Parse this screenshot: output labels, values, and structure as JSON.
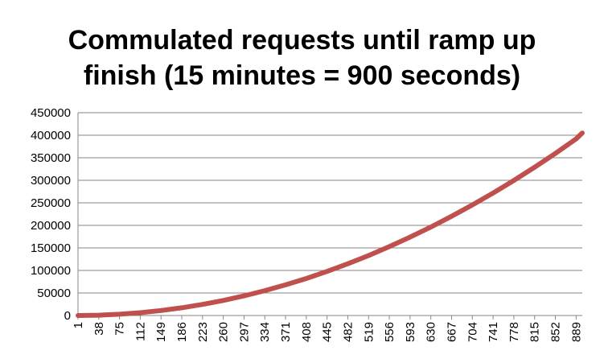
{
  "chart_data": {
    "type": "line",
    "title_lines": [
      "Commulated requests until ramp up",
      "finish (15 minutes = 900 seconds)"
    ],
    "xlabel": "",
    "ylabel": "",
    "ylim": [
      0,
      450000
    ],
    "y_ticks": [
      "0",
      "50000",
      "100000",
      "150000",
      "200000",
      "250000",
      "300000",
      "350000",
      "400000",
      "450000"
    ],
    "x_tick_labels": [
      "1",
      "38",
      "75",
      "112",
      "149",
      "186",
      "223",
      "260",
      "297",
      "334",
      "371",
      "408",
      "445",
      "482",
      "519",
      "556",
      "593",
      "630",
      "667",
      "704",
      "741",
      "778",
      "815",
      "852",
      "889"
    ],
    "xlim": [
      1,
      900
    ],
    "grid": "horizontal",
    "legend": "none",
    "series": [
      {
        "color": "#c0504d",
        "x": [
          1,
          38,
          75,
          112,
          149,
          186,
          223,
          260,
          297,
          334,
          371,
          408,
          445,
          482,
          519,
          556,
          593,
          630,
          667,
          704,
          741,
          778,
          815,
          852,
          889,
          900
        ],
        "values": [
          0,
          700,
          2800,
          6200,
          11000,
          17100,
          24600,
          33400,
          43600,
          55100,
          68000,
          82200,
          97800,
          114800,
          133100,
          152800,
          173900,
          196300,
          220100,
          245300,
          271800,
          299700,
          329000,
          359700,
          391700,
          405000
        ]
      }
    ]
  }
}
